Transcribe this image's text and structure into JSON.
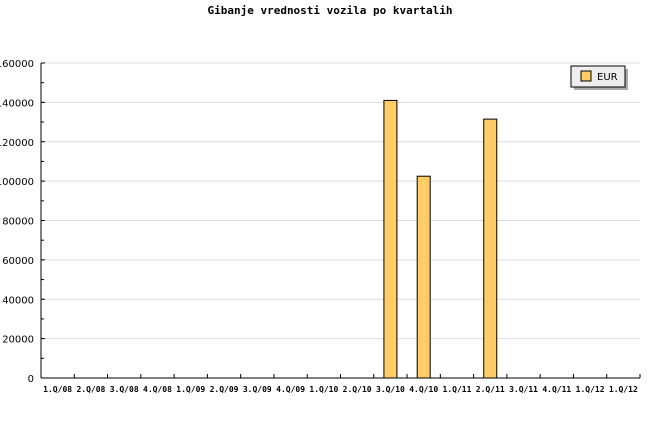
{
  "chart_data": {
    "type": "bar",
    "title": "Gibanje vrednosti vozila po kvartalih",
    "categories": [
      "1.Q/08",
      "2.Q/08",
      "3.Q/08",
      "4.Q/08",
      "1.Q/09",
      "2.Q/09",
      "3.Q/09",
      "4.Q/09",
      "1.Q/10",
      "2.Q/10",
      "3.Q/10",
      "4.Q/10",
      "1.Q/11",
      "2.Q/11",
      "3.Q/11",
      "4.Q/11",
      "1.Q/12",
      "1.Q/12"
    ],
    "series": [
      {
        "name": "EUR",
        "values": [
          0,
          0,
          0,
          0,
          0,
          0,
          0,
          0,
          0,
          0,
          141000,
          102500,
          0,
          131500,
          0,
          0,
          0,
          0
        ],
        "color": "#ffcc66"
      }
    ],
    "ylim": [
      0,
      160000
    ],
    "yticks": [
      0,
      20000,
      40000,
      60000,
      80000,
      100000,
      120000,
      140000,
      160000
    ],
    "xlabel": "",
    "ylabel": "",
    "grid": true,
    "legend": "top-right"
  }
}
